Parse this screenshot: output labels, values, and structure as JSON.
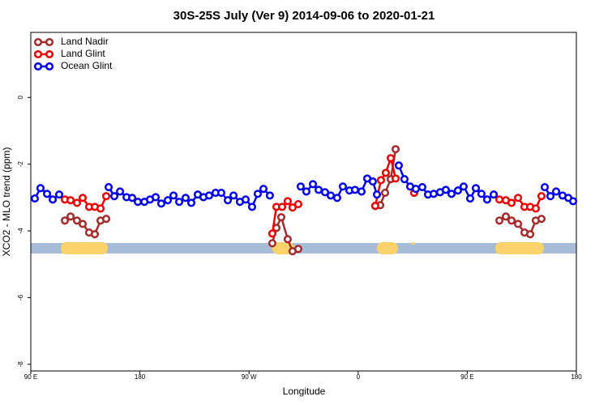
{
  "chart_data": {
    "type": "line",
    "title": "30S-25S July (Ver 9)   2014-09-06 to 2020-01-21",
    "x_label": "Longitude",
    "y_label": "XCO2 - MLO trend (ppm)",
    "xlim": [
      90,
      540
    ],
    "ylim": [
      -8.2,
      1.95
    ],
    "xticks": [
      {
        "value": 90,
        "label": "90 E"
      },
      180,
      {
        "value": 270,
        "label": "90 W"
      },
      {
        "value": 360,
        "label": "0"
      },
      {
        "value": 450,
        "label": "90 E"
      },
      {
        "value": 540,
        "label": "180"
      }
    ],
    "yticks": [
      0,
      -2,
      -4,
      -6,
      -8
    ],
    "grid": false,
    "legend": "top-left",
    "series": [
      {
        "name": "Land Nadir",
        "color": "#a52a2a",
        "x": [
          118.1,
          122.8,
          128.1,
          132.8,
          138.1,
          142.8,
          147.5,
          152.2,
          220,
          289.2,
          292.6,
          296.6,
          301.9,
          305.9,
          310.6,
          340,
          374.1,
          378.2,
          382.2,
          386.9,
          390.9,
          430,
          476.5,
          481.8,
          486.5,
          491.9,
          497.2,
          501.9,
          506.5,
          511.2
        ],
        "values": [
          -3.69,
          -3.57,
          -3.69,
          -3.79,
          -4.05,
          -4.1,
          -3.69,
          -3.64,
          null,
          -4.37,
          -3.91,
          -3.59,
          -4.25,
          -4.61,
          -4.54,
          null,
          -3.25,
          -3.23,
          -2.86,
          -2.45,
          -1.55,
          null,
          -3.69,
          -3.57,
          -3.69,
          -3.79,
          -4.05,
          -4.1,
          -3.69,
          -3.64
        ]
      },
      {
        "name": "Land Glint",
        "color": "#ee0000",
        "x": [
          118.1,
          122.8,
          128.1,
          132.8,
          138.1,
          142.8,
          147.5,
          152.2,
          220,
          289.2,
          292.6,
          297.3,
          301.9,
          305.9,
          310.6,
          340,
          374.1,
          378.8,
          382.8,
          386.9,
          390.9,
          400,
          406.2,
          440,
          476.5,
          481.8,
          486.5,
          491.9,
          497.2,
          501.9,
          506.5,
          511.2
        ],
        "values": [
          -3.06,
          -3.08,
          -3.16,
          -3.01,
          -3.28,
          -3.28,
          -3.33,
          -2.96,
          null,
          -4.08,
          -3.28,
          -3.28,
          -3.11,
          -3.3,
          -3.2,
          null,
          -3.25,
          -2.48,
          -2.26,
          -1.82,
          -2.43,
          null,
          -2.86,
          null,
          -3.06,
          -3.08,
          -3.16,
          -3.01,
          -3.28,
          -3.28,
          -3.33,
          -2.96
        ]
      },
      {
        "name": "Ocean Glint",
        "color": "#0000ee",
        "x": [
          93.3,
          98.0,
          103.4,
          108.1,
          113.4,
          130,
          154.2,
          158.9,
          163.6,
          169.0,
          173.6,
          178.3,
          183.7,
          188.3,
          193.0,
          197.6,
          203.0,
          207.7,
          212.4,
          217.7,
          222.4,
          227.7,
          232.4,
          237.1,
          242.4,
          247.1,
          252.5,
          257.2,
          262.5,
          267.2,
          272.5,
          277.2,
          281.9,
          287.2,
          300,
          312.6,
          317.3,
          322.7,
          327.4,
          332.7,
          337.4,
          342.7,
          347.4,
          352.8,
          357.4,
          362.8,
          367.5,
          372.1,
          375.5,
          385,
          393.5,
          398.2,
          402.9,
          407.6,
          412.9,
          417.6,
          422.3,
          427.6,
          432.3,
          437.0,
          442.3,
          447.0,
          452.4,
          457.1,
          461.7,
          466.4,
          471.8,
          495,
          513.9,
          518.6,
          523.3,
          528.6,
          533.3,
          537.3
        ],
        "values": [
          -3.03,
          -2.72,
          -2.89,
          -3.06,
          -2.91,
          null,
          -2.69,
          -2.96,
          -2.82,
          -2.99,
          -3.01,
          -3.13,
          -3.13,
          -3.06,
          -2.99,
          -3.18,
          -3.08,
          -2.94,
          -3.13,
          -3.01,
          -3.16,
          -2.91,
          -2.99,
          -2.94,
          -2.86,
          -2.86,
          -3.08,
          -2.94,
          -3.13,
          -3.06,
          -3.28,
          -2.89,
          -2.74,
          -2.94,
          null,
          -2.67,
          -2.82,
          -2.6,
          -2.77,
          -2.84,
          -2.94,
          -3.01,
          -2.67,
          -2.79,
          -2.77,
          -2.82,
          -2.43,
          -2.52,
          -2.91,
          null,
          -2.04,
          -2.45,
          -2.67,
          -2.74,
          -2.69,
          -2.91,
          -2.89,
          -2.84,
          -2.77,
          -2.89,
          -2.79,
          -2.67,
          -3.03,
          -2.72,
          -2.89,
          -3.06,
          -2.91,
          null,
          -2.69,
          -2.96,
          -2.82,
          -2.94,
          -3.01,
          -3.11
        ]
      }
    ]
  }
}
